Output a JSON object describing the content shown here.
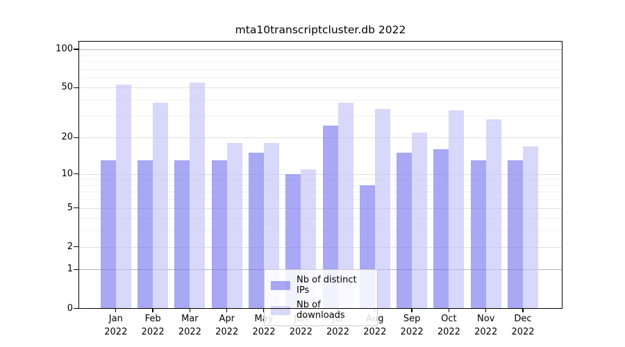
{
  "title": "mta10transcriptcluster.db 2022",
  "chart_data": {
    "type": "bar",
    "title": "mta10transcriptcluster.db 2022",
    "year": "2022",
    "categories": [
      "Jan",
      "Feb",
      "Mar",
      "Apr",
      "May",
      "Jun",
      "Jul",
      "Aug",
      "Sep",
      "Oct",
      "Nov",
      "Dec"
    ],
    "series": [
      {
        "name": "Nb of distinct IPs",
        "color": "#6e6eec",
        "alpha": 0.6,
        "values": [
          13,
          13,
          13,
          13,
          15,
          10,
          25,
          8,
          15,
          16,
          13,
          13
        ]
      },
      {
        "name": "Nb of downloads",
        "color": "#bebef7",
        "alpha": 0.6,
        "values": [
          53,
          38,
          55,
          18,
          18,
          11,
          38,
          34,
          22,
          33,
          28,
          17
        ]
      }
    ],
    "y_scale": "log1p",
    "y_ticks": [
      0,
      1,
      2,
      5,
      10,
      20,
      50,
      100
    ],
    "y_minor_ticks": [
      3,
      4,
      6,
      7,
      8,
      9,
      30,
      40,
      60,
      70,
      80,
      90
    ],
    "ylim": [
      0,
      117
    ],
    "xlabel": "",
    "ylabel": "",
    "grid": true,
    "legend_position": "lower center"
  }
}
